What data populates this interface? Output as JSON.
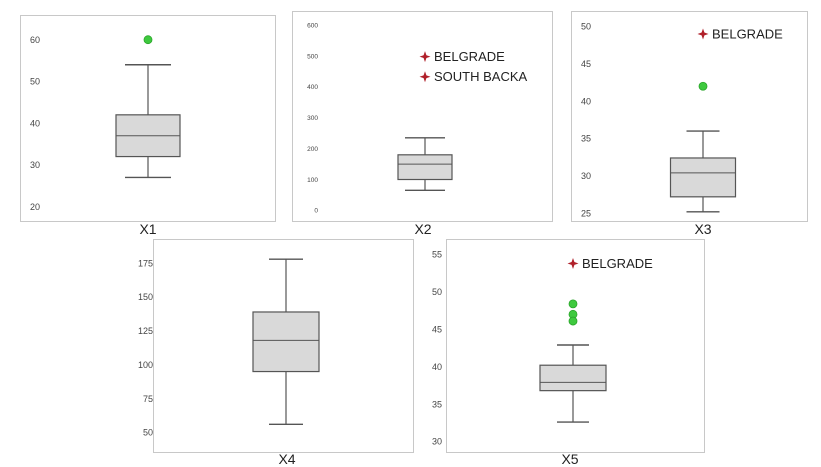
{
  "chart_data": [
    {
      "type": "box",
      "xlabel": "X1",
      "ylim": [
        18,
        64
      ],
      "yticks": [
        20,
        30,
        40,
        50,
        60
      ],
      "box": {
        "min": 27,
        "q1": 32,
        "median": 37,
        "q3": 42,
        "max": 54
      },
      "outliers": [
        {
          "y": 60,
          "kind": "outlier"
        }
      ],
      "extremes": []
    },
    {
      "type": "box",
      "xlabel": "X2",
      "ylim": [
        -15,
        620
      ],
      "yticks": [
        0,
        100,
        200,
        300,
        400,
        500,
        600
      ],
      "box": {
        "min": 65,
        "q1": 100,
        "median": 150,
        "q3": 180,
        "max": 235
      },
      "outliers": [],
      "extremes": [
        {
          "label": "BELGRADE",
          "y": 498
        },
        {
          "label": "SOUTH BACKA",
          "y": 433
        }
      ]
    },
    {
      "type": "box",
      "xlabel": "X3",
      "ylim": [
        24.5,
        51
      ],
      "yticks": [
        25,
        30,
        35,
        40,
        45,
        50
      ],
      "box": {
        "min": 25.2,
        "q1": 27.2,
        "median": 30.4,
        "q3": 32.4,
        "max": 36
      },
      "outliers": [
        {
          "y": 42,
          "kind": "outlier"
        }
      ],
      "extremes": [
        {
          "label": "BELGRADE",
          "y": 49
        }
      ]
    },
    {
      "type": "box",
      "xlabel": "X4",
      "ylim": [
        40,
        187
      ],
      "yticks": [
        50,
        75,
        100,
        125,
        150,
        175
      ],
      "box": {
        "min": 56,
        "q1": 95,
        "median": 118,
        "q3": 139,
        "max": 178
      },
      "outliers": [],
      "extremes": []
    },
    {
      "type": "box",
      "xlabel": "X5",
      "ylim": [
        29,
        56
      ],
      "yticks": [
        30,
        35,
        40,
        45,
        50,
        55
      ],
      "box": {
        "min": 32.6,
        "q1": 36.8,
        "median": 37.9,
        "q3": 40.2,
        "max": 42.9
      },
      "outliers": [
        {
          "y": 48.4,
          "kind": "outlier"
        },
        {
          "y": 47,
          "kind": "outlier"
        },
        {
          "y": 46.1,
          "kind": "outlier"
        }
      ],
      "extremes": [
        {
          "label": "BELGRADE",
          "y": 53.8
        }
      ]
    }
  ],
  "colors": {
    "box_fill": "#d9d9d9",
    "box_stroke": "#555555",
    "outlier": "#3ec93e",
    "extreme": "#b0202a",
    "frame": "#c8c8c8"
  }
}
